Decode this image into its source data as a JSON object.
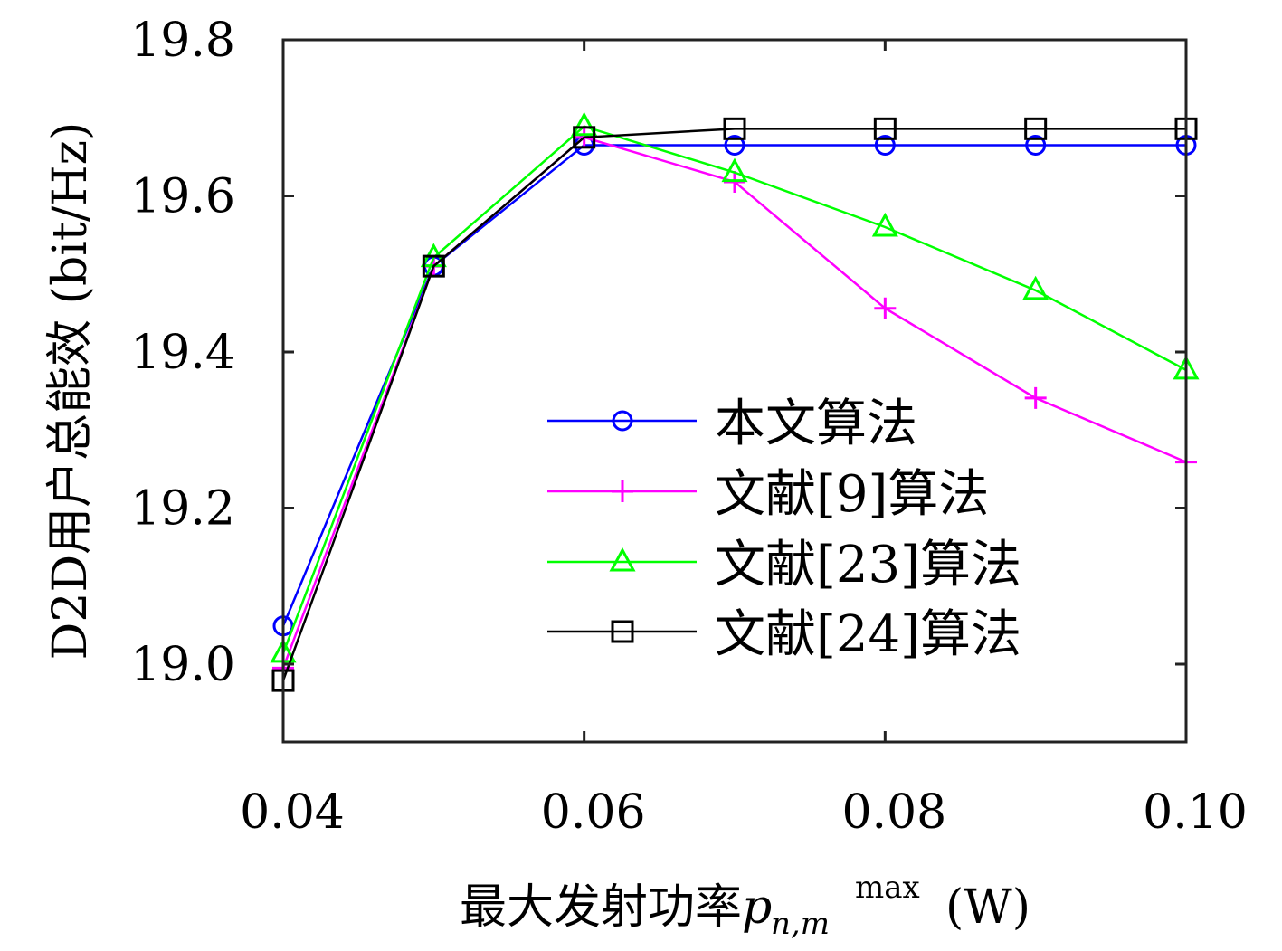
{
  "chart_data": {
    "type": "line",
    "title": "",
    "xlabel": "最大发射功率",
    "xlabel_symbol": "p",
    "xlabel_sub": "n,m",
    "xlabel_sup": "max",
    "xlabel_unit": "(W)",
    "ylabel": "D2D用户总能效 (bit/Hz)",
    "xlim": [
      0.04,
      0.1
    ],
    "ylim": [
      18.9,
      19.8
    ],
    "xticks": [
      0.04,
      0.06,
      0.08,
      0.1
    ],
    "xtick_labels": [
      "0.04",
      "0.06",
      "0.08",
      "0.10"
    ],
    "yticks": [
      19.0,
      19.2,
      19.4,
      19.6,
      19.8
    ],
    "ytick_labels": [
      "19.0",
      "19.2",
      "19.4",
      "19.6",
      "19.8"
    ],
    "grid": false,
    "legend_position": "center-right",
    "x": [
      0.04,
      0.05,
      0.06,
      0.07,
      0.08,
      0.09,
      0.1
    ],
    "series": [
      {
        "name": "本文算法",
        "color": "#0000ff",
        "marker": "circle",
        "values": [
          19.049,
          19.51,
          19.665,
          19.665,
          19.665,
          19.665,
          19.665
        ]
      },
      {
        "name": "文献[9]算法",
        "color": "#ff00ff",
        "marker": "plus",
        "values": [
          18.995,
          19.51,
          19.675,
          19.618,
          19.456,
          19.341,
          19.259
        ]
      },
      {
        "name": "文献[23]算法",
        "color": "#00ff00",
        "marker": "triangle",
        "values": [
          19.014,
          19.521,
          19.689,
          19.63,
          19.56,
          19.479,
          19.377
        ]
      },
      {
        "name": "文献[24]算法",
        "color": "#000000",
        "marker": "square",
        "values": [
          18.979,
          19.51,
          19.675,
          19.686,
          19.686,
          19.686,
          19.686
        ]
      }
    ]
  }
}
